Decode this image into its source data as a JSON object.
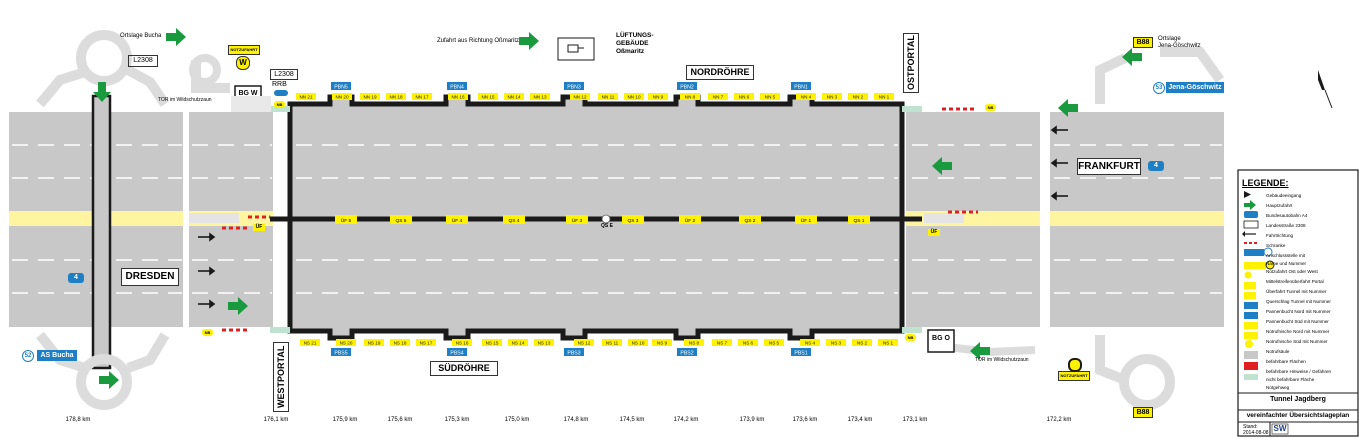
{
  "tunnel": {
    "north_tube": "NORDRÖHRE",
    "south_tube": "SÜDRÖHRE",
    "west_portal": "WESTPORTAL",
    "east_portal": "OSTPORTAL"
  },
  "directions": {
    "west": "DRESDEN",
    "east": "FRANKFURT",
    "motorway_shield": "4"
  },
  "places": {
    "ortslage_bucha": "Ortslage Bucha",
    "l2308": "L2308",
    "l2308b": "L2308",
    "notzufahrt": "NOTZUFAHRT",
    "w_marker": "W",
    "rrb": "RRB",
    "bg_w": "BG W",
    "bg_o": "BG O",
    "tor_west": "TOR im Wildschutzzaun",
    "tor_east": "TOR im Wildschutzzaun",
    "zufahrt": "Zufahrt aus Richtung Oßmaritz",
    "lueftung_1": "LÜFTUNGS-",
    "lueftung_2": "GEBÄUDE",
    "lueftung_3": "Oßmaritz",
    "b88_top": "B88",
    "b88_bottom": "B88",
    "ortslage_jena_1": "Ortslage",
    "ortslage_jena_2": "Jena-Göschwitz",
    "as_bucha_num": "52",
    "as_bucha": "AS Bucha",
    "as_jena_num": "53",
    "as_jena": "Jena-Göschwitz",
    "notzufahrt_east": "NOTZUFAHRT",
    "nb_1": "NB",
    "nb_2": "NB",
    "nb_3": "NB",
    "nb_4": "NB",
    "uf_west": "ÜF",
    "uf_east": "ÜF"
  },
  "niches_north": [
    "NN 21",
    "NN 20",
    "NN 19",
    "NN 18",
    "NN 17",
    "NN 16",
    "NN 15",
    "NN 14",
    "NN 13",
    "NN 12",
    "NN 11",
    "NN 10",
    "NN 9",
    "NN 8",
    "NN 7",
    "NN 6",
    "NN 5",
    "NN 4",
    "NN 3",
    "NN 2",
    "NN 1"
  ],
  "niches_south": [
    "NS 21",
    "NS 20",
    "NS 19",
    "NS 18",
    "NS 17",
    "NS 16",
    "NS 15",
    "NS 14",
    "NS 13",
    "NS 12",
    "NS 11",
    "NS 10",
    "NS 9",
    "NS 8",
    "NS 7",
    "NS 6",
    "NS 5",
    "NS 4",
    "NS 3",
    "NS 2",
    "NS 1"
  ],
  "breakdown_north": [
    "PBN5",
    "PBN4",
    "PBN3",
    "PBN2",
    "PBN1"
  ],
  "breakdown_south": [
    "PBS5",
    "PBS4",
    "PBS3",
    "PBS2",
    "PBS1"
  ],
  "crossings": [
    "ÜF 5",
    "QS 5",
    "ÜF 4",
    "QS 4",
    "ÜF 3",
    "QS 3",
    "ÜF 2",
    "QS 2",
    "ÜF 1",
    "QS 1"
  ],
  "crossing_extra": "QS E",
  "km_labels": [
    "178,8 km",
    "176,1 km",
    "175,9 km",
    "175,6 km",
    "175,3 km",
    "175,0 km",
    "174,8 km",
    "174,5 km",
    "174,2 km",
    "173,9 km",
    "173,6 km",
    "173,4 km",
    "173,1 km",
    "172,2 km"
  ],
  "legend": {
    "title": "LEGENDE:",
    "items": [
      "Gebäudeeingang",
      "Hauptzufahrt",
      "Bundesautobahn A4",
      "Landesstraße 2308",
      "Fahrtrichtung",
      "Schranke",
      "Anschlussstelle mit",
      "Name und Nummer",
      "Notzufahrt Ost oder West",
      "Mittelstreifenüberfahrt Portal",
      "Überfahrt Tunnel mit Nummer",
      "Querschlag Tunnel mit Nummer",
      "Pannenbucht Nord mit Nummer",
      "Pannenbucht Süd mit Nummer",
      "Notrufnische Nord mit Nummer",
      "Notrufnische Süd mit Nummer",
      "Notrufsäule",
      "befahrbare Flächen",
      "befahrbare Hinweise / Gefahren",
      "nicht befahrbare Fläche",
      "Notgehweg"
    ],
    "swatch_labels": [
      "L2308",
      "Jena-Göschwitz",
      "53",
      "NOTZUFAHRT",
      "ÜF",
      "ÜF 1",
      "QS 1",
      "PBN1",
      "PBS1",
      "NN 11",
      "NS 11",
      "NB",
      "4"
    ]
  },
  "titleblock": {
    "name": "Tunnel Jagdberg",
    "subtitle": "vereinfachter Übersichtslageplan",
    "stand_label": "Stand:",
    "stand_date": "2014-08-08",
    "logo": "SW"
  },
  "colors": {
    "road": "#c8c8c8",
    "tunnel_wall": "#1a1a1a",
    "yellow": "#fff200",
    "blue": "#1f7fc4",
    "green": "#1a9a3e",
    "walkway": "#bfe3d0",
    "median": "#fff5a0"
  }
}
